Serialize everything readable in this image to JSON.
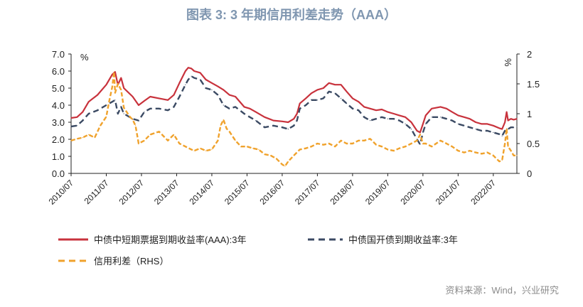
{
  "title": "图表 3:    3 年期信用利差走势（AAA）",
  "source": "资料来源：Wind，兴业研究",
  "colors": {
    "series1": "#c8323c",
    "series2": "#3b4a63",
    "series3": "#f0a22c",
    "title": "#7f96b0"
  },
  "chart_data": {
    "type": "line",
    "title": "图表 3:    3 年期信用利差走势（AAA）",
    "y_left": {
      "unit": "%",
      "range": [
        0,
        7
      ],
      "ticks": [
        "0.0",
        "1.0",
        "2.0",
        "3.0",
        "4.0",
        "5.0",
        "6.0",
        "7.0"
      ]
    },
    "y_right": {
      "unit": "%",
      "range": [
        0,
        2
      ],
      "ticks": [
        "0",
        "0.5",
        "1",
        "1.5",
        "2"
      ]
    },
    "x_range": [
      2010.5,
      2023.17
    ],
    "x_ticks": [
      "2010/07",
      "2011/07",
      "2012/07",
      "2013/07",
      "2014/07",
      "2015/07",
      "2016/07",
      "2017/07",
      "2018/07",
      "2019/07",
      "2020/07",
      "2021/07",
      "2022/07"
    ],
    "legend_placement": "bottom",
    "series": [
      {
        "name": "中债中短期票据到期收益率(AAA):3年",
        "axis": "left",
        "style": "solid",
        "points": [
          [
            2010.5,
            3.25
          ],
          [
            2010.67,
            3.3
          ],
          [
            2010.83,
            3.6
          ],
          [
            2011.0,
            4.2
          ],
          [
            2011.25,
            4.6
          ],
          [
            2011.5,
            5.2
          ],
          [
            2011.67,
            5.8
          ],
          [
            2011.75,
            5.95
          ],
          [
            2011.83,
            5.2
          ],
          [
            2011.92,
            5.6
          ],
          [
            2012.0,
            5.0
          ],
          [
            2012.25,
            4.5
          ],
          [
            2012.42,
            4.0
          ],
          [
            2012.58,
            4.25
          ],
          [
            2012.75,
            4.5
          ],
          [
            2013.0,
            4.4
          ],
          [
            2013.25,
            4.3
          ],
          [
            2013.42,
            4.6
          ],
          [
            2013.58,
            5.3
          ],
          [
            2013.75,
            6.0
          ],
          [
            2013.83,
            6.2
          ],
          [
            2013.92,
            6.15
          ],
          [
            2014.0,
            6.0
          ],
          [
            2014.17,
            5.9
          ],
          [
            2014.33,
            5.5
          ],
          [
            2014.5,
            5.3
          ],
          [
            2014.67,
            5.1
          ],
          [
            2014.83,
            4.9
          ],
          [
            2015.0,
            4.6
          ],
          [
            2015.17,
            4.5
          ],
          [
            2015.42,
            3.9
          ],
          [
            2015.58,
            3.8
          ],
          [
            2015.75,
            3.6
          ],
          [
            2016.0,
            3.3
          ],
          [
            2016.25,
            3.1
          ],
          [
            2016.5,
            3.05
          ],
          [
            2016.67,
            3.0
          ],
          [
            2016.83,
            3.2
          ],
          [
            2016.92,
            3.5
          ],
          [
            2017.0,
            4.1
          ],
          [
            2017.17,
            4.4
          ],
          [
            2017.33,
            4.7
          ],
          [
            2017.5,
            4.9
          ],
          [
            2017.67,
            5.0
          ],
          [
            2017.83,
            5.3
          ],
          [
            2018.0,
            5.2
          ],
          [
            2018.17,
            5.2
          ],
          [
            2018.33,
            4.8
          ],
          [
            2018.5,
            4.4
          ],
          [
            2018.67,
            4.2
          ],
          [
            2018.83,
            3.9
          ],
          [
            2019.0,
            3.8
          ],
          [
            2019.17,
            3.7
          ],
          [
            2019.33,
            3.75
          ],
          [
            2019.5,
            3.6
          ],
          [
            2019.67,
            3.5
          ],
          [
            2019.83,
            3.4
          ],
          [
            2020.0,
            3.3
          ],
          [
            2020.17,
            3.0
          ],
          [
            2020.33,
            2.5
          ],
          [
            2020.42,
            2.4
          ],
          [
            2020.5,
            2.9
          ],
          [
            2020.58,
            3.4
          ],
          [
            2020.75,
            3.8
          ],
          [
            2021.0,
            3.9
          ],
          [
            2021.17,
            3.8
          ],
          [
            2021.33,
            3.6
          ],
          [
            2021.5,
            3.4
          ],
          [
            2021.67,
            3.3
          ],
          [
            2021.83,
            3.2
          ],
          [
            2022.0,
            3.0
          ],
          [
            2022.17,
            2.9
          ],
          [
            2022.33,
            2.9
          ],
          [
            2022.5,
            2.8
          ],
          [
            2022.67,
            2.65
          ],
          [
            2022.75,
            2.6
          ],
          [
            2022.83,
            3.0
          ],
          [
            2022.88,
            3.6
          ],
          [
            2022.92,
            3.1
          ],
          [
            2023.0,
            3.2
          ],
          [
            2023.08,
            3.15
          ],
          [
            2023.17,
            3.2
          ]
        ]
      },
      {
        "name": "中债国开债到期收益率:3年",
        "axis": "left",
        "style": "dashed",
        "points": [
          [
            2010.5,
            2.75
          ],
          [
            2010.67,
            2.8
          ],
          [
            2010.83,
            3.1
          ],
          [
            2011.0,
            3.5
          ],
          [
            2011.25,
            3.7
          ],
          [
            2011.5,
            4.0
          ],
          [
            2011.67,
            4.2
          ],
          [
            2011.75,
            4.3
          ],
          [
            2011.83,
            3.5
          ],
          [
            2011.92,
            3.9
          ],
          [
            2012.0,
            3.5
          ],
          [
            2012.25,
            3.2
          ],
          [
            2012.42,
            3.1
          ],
          [
            2012.58,
            3.6
          ],
          [
            2012.75,
            3.8
          ],
          [
            2013.0,
            3.8
          ],
          [
            2013.25,
            3.7
          ],
          [
            2013.42,
            3.9
          ],
          [
            2013.58,
            4.5
          ],
          [
            2013.75,
            5.2
          ],
          [
            2013.83,
            5.5
          ],
          [
            2013.92,
            5.7
          ],
          [
            2014.0,
            5.6
          ],
          [
            2014.17,
            5.5
          ],
          [
            2014.33,
            5.0
          ],
          [
            2014.5,
            4.9
          ],
          [
            2014.67,
            4.6
          ],
          [
            2014.83,
            4.0
          ],
          [
            2015.0,
            3.8
          ],
          [
            2015.17,
            3.9
          ],
          [
            2015.42,
            3.5
          ],
          [
            2015.58,
            3.3
          ],
          [
            2015.75,
            3.1
          ],
          [
            2016.0,
            2.7
          ],
          [
            2016.25,
            2.8
          ],
          [
            2016.5,
            2.7
          ],
          [
            2016.67,
            2.6
          ],
          [
            2016.83,
            2.8
          ],
          [
            2016.92,
            3.1
          ],
          [
            2017.0,
            3.8
          ],
          [
            2017.17,
            4.0
          ],
          [
            2017.33,
            4.3
          ],
          [
            2017.5,
            4.3
          ],
          [
            2017.67,
            4.4
          ],
          [
            2017.83,
            4.8
          ],
          [
            2018.0,
            4.7
          ],
          [
            2018.17,
            4.4
          ],
          [
            2018.33,
            4.1
          ],
          [
            2018.5,
            3.8
          ],
          [
            2018.67,
            3.7
          ],
          [
            2018.83,
            3.3
          ],
          [
            2019.0,
            3.1
          ],
          [
            2019.17,
            3.2
          ],
          [
            2019.33,
            3.3
          ],
          [
            2019.5,
            3.2
          ],
          [
            2019.67,
            3.2
          ],
          [
            2019.83,
            3.1
          ],
          [
            2020.0,
            2.9
          ],
          [
            2020.17,
            2.6
          ],
          [
            2020.33,
            2.0
          ],
          [
            2020.42,
            1.7
          ],
          [
            2020.5,
            2.4
          ],
          [
            2020.58,
            2.9
          ],
          [
            2020.75,
            3.3
          ],
          [
            2021.0,
            3.3
          ],
          [
            2021.17,
            3.2
          ],
          [
            2021.33,
            3.1
          ],
          [
            2021.5,
            2.9
          ],
          [
            2021.67,
            2.8
          ],
          [
            2021.83,
            2.7
          ],
          [
            2022.0,
            2.6
          ],
          [
            2022.17,
            2.5
          ],
          [
            2022.33,
            2.5
          ],
          [
            2022.5,
            2.4
          ],
          [
            2022.67,
            2.3
          ],
          [
            2022.75,
            2.2
          ],
          [
            2022.83,
            2.5
          ],
          [
            2022.88,
            2.6
          ],
          [
            2022.92,
            2.6
          ],
          [
            2023.0,
            2.7
          ],
          [
            2023.08,
            2.7
          ],
          [
            2023.17,
            2.75
          ]
        ]
      },
      {
        "name": "信用利差（RHS）",
        "axis": "right",
        "style": "dashed",
        "points": [
          [
            2010.5,
            0.55
          ],
          [
            2010.67,
            0.58
          ],
          [
            2010.83,
            0.6
          ],
          [
            2011.0,
            0.65
          ],
          [
            2011.17,
            0.6
          ],
          [
            2011.33,
            0.8
          ],
          [
            2011.5,
            0.95
          ],
          [
            2011.58,
            1.2
          ],
          [
            2011.67,
            1.45
          ],
          [
            2011.72,
            1.7
          ],
          [
            2011.75,
            1.35
          ],
          [
            2011.83,
            1.5
          ],
          [
            2011.92,
            1.4
          ],
          [
            2012.0,
            1.1
          ],
          [
            2012.17,
            0.95
          ],
          [
            2012.25,
            0.9
          ],
          [
            2012.33,
            0.8
          ],
          [
            2012.42,
            0.5
          ],
          [
            2012.58,
            0.55
          ],
          [
            2012.75,
            0.65
          ],
          [
            2013.0,
            0.7
          ],
          [
            2013.25,
            0.55
          ],
          [
            2013.42,
            0.65
          ],
          [
            2013.58,
            0.5
          ],
          [
            2013.75,
            0.45
          ],
          [
            2013.92,
            0.4
          ],
          [
            2014.0,
            0.38
          ],
          [
            2014.17,
            0.42
          ],
          [
            2014.33,
            0.38
          ],
          [
            2014.5,
            0.4
          ],
          [
            2014.67,
            0.55
          ],
          [
            2014.75,
            0.8
          ],
          [
            2014.83,
            0.9
          ],
          [
            2014.92,
            0.75
          ],
          [
            2015.0,
            0.7
          ],
          [
            2015.17,
            0.55
          ],
          [
            2015.33,
            0.45
          ],
          [
            2015.5,
            0.45
          ],
          [
            2015.67,
            0.42
          ],
          [
            2015.83,
            0.4
          ],
          [
            2016.0,
            0.32
          ],
          [
            2016.17,
            0.3
          ],
          [
            2016.33,
            0.25
          ],
          [
            2016.5,
            0.15
          ],
          [
            2016.58,
            0.12
          ],
          [
            2016.67,
            0.2
          ],
          [
            2016.83,
            0.3
          ],
          [
            2017.0,
            0.4
          ],
          [
            2017.17,
            0.42
          ],
          [
            2017.33,
            0.45
          ],
          [
            2017.5,
            0.5
          ],
          [
            2017.67,
            0.48
          ],
          [
            2017.83,
            0.5
          ],
          [
            2018.0,
            0.45
          ],
          [
            2018.17,
            0.55
          ],
          [
            2018.33,
            0.5
          ],
          [
            2018.5,
            0.5
          ],
          [
            2018.67,
            0.55
          ],
          [
            2018.83,
            0.55
          ],
          [
            2019.0,
            0.58
          ],
          [
            2019.17,
            0.48
          ],
          [
            2019.33,
            0.45
          ],
          [
            2019.5,
            0.4
          ],
          [
            2019.67,
            0.38
          ],
          [
            2019.83,
            0.42
          ],
          [
            2020.0,
            0.45
          ],
          [
            2020.17,
            0.5
          ],
          [
            2020.33,
            0.55
          ],
          [
            2020.42,
            0.65
          ],
          [
            2020.5,
            0.5
          ],
          [
            2020.58,
            0.5
          ],
          [
            2020.75,
            0.45
          ],
          [
            2021.0,
            0.55
          ],
          [
            2021.17,
            0.5
          ],
          [
            2021.33,
            0.45
          ],
          [
            2021.5,
            0.38
          ],
          [
            2021.67,
            0.35
          ],
          [
            2021.83,
            0.38
          ],
          [
            2022.0,
            0.35
          ],
          [
            2022.17,
            0.33
          ],
          [
            2022.33,
            0.35
          ],
          [
            2022.5,
            0.3
          ],
          [
            2022.67,
            0.2
          ],
          [
            2022.75,
            0.22
          ],
          [
            2022.83,
            0.5
          ],
          [
            2022.88,
            0.75
          ],
          [
            2022.92,
            0.45
          ],
          [
            2023.0,
            0.38
          ],
          [
            2023.08,
            0.3
          ],
          [
            2023.17,
            0.3
          ]
        ]
      }
    ]
  }
}
